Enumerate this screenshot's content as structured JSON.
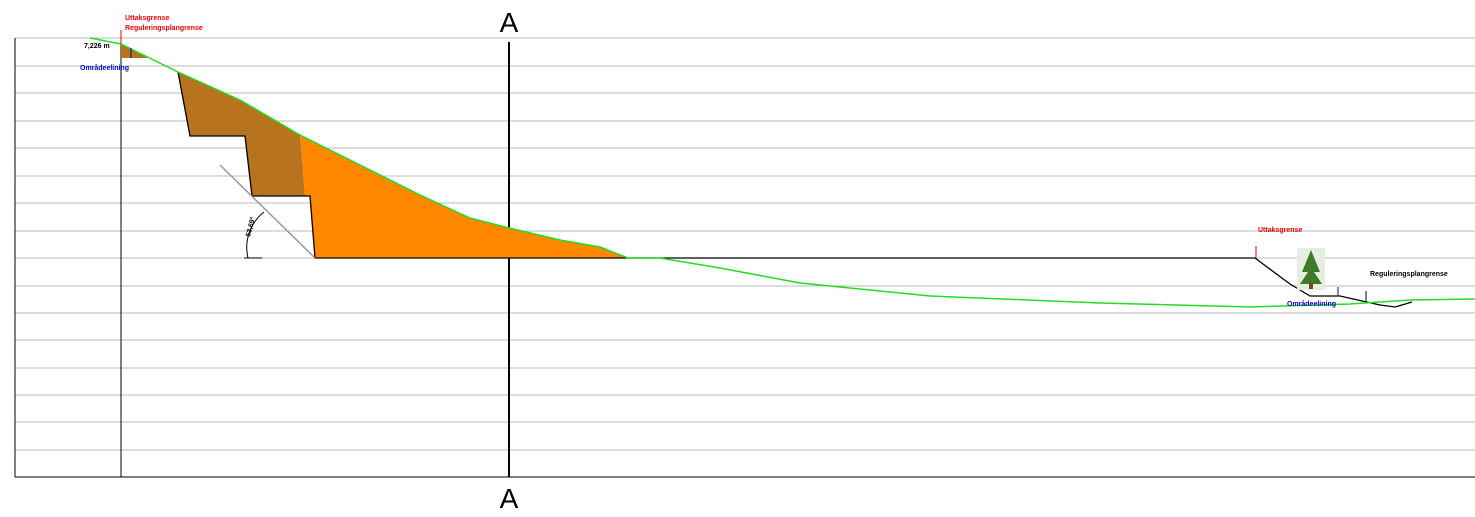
{
  "section": {
    "top_label": "A",
    "bottom_label": "A"
  },
  "left": {
    "limit_label": "Uttaksgrense",
    "plan_label": "Reguleringsplangrense",
    "area_label": "Områdeelining",
    "dimension_label": "7,226 m"
  },
  "angle_label": "53,69°",
  "right": {
    "limit_label": "Uttaksgrense",
    "plan_label": "Reguleringsplangrense",
    "area_label": "Områdeelining"
  }
}
